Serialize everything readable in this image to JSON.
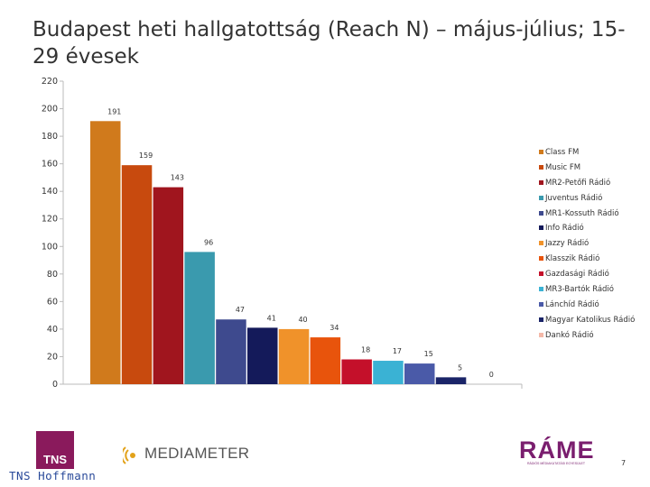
{
  "title": "Budapest heti hallgatottság (Reach N) – május-július; 15-29 évesek",
  "chart_data": {
    "type": "bar",
    "title": "Budapest heti hallgatottság (Reach N) – május-július; 15-29 évesek",
    "xlabel": "",
    "ylabel": "",
    "ylim": [
      0,
      220
    ],
    "yticks": [
      0,
      20,
      40,
      60,
      80,
      100,
      120,
      140,
      160,
      180,
      200,
      220
    ],
    "grid": false,
    "legend_position": "right",
    "series": [
      {
        "name": "Class FM",
        "value": 191,
        "color": "#d07a1c"
      },
      {
        "name": "Music FM",
        "value": 159,
        "color": "#c84a0e"
      },
      {
        "name": "MR2-Petőfi Rádió",
        "value": 143,
        "color": "#a0151e"
      },
      {
        "name": "Juventus Rádió",
        "value": 96,
        "color": "#3a9aae"
      },
      {
        "name": "MR1-Kossuth Rádió",
        "value": 47,
        "color": "#3e4a8e"
      },
      {
        "name": "Info Rádió",
        "value": 41,
        "color": "#141a5a"
      },
      {
        "name": "Jazzy Rádió",
        "value": 40,
        "color": "#f0922a"
      },
      {
        "name": "Klasszik Rádió",
        "value": 34,
        "color": "#e8540c"
      },
      {
        "name": "Gazdasági Rádió",
        "value": 18,
        "color": "#c4102a"
      },
      {
        "name": "MR3-Bartók Rádió",
        "value": 17,
        "color": "#3ab2d4"
      },
      {
        "name": "Lánchíd Rádió",
        "value": 15,
        "color": "#4a5aa8"
      },
      {
        "name": "Magyar Katolikus Rádió",
        "value": 5,
        "color": "#1a2468"
      },
      {
        "name": "Dankó Rádió",
        "value": 0,
        "color": "#f4b8a8"
      }
    ]
  },
  "footer": {
    "tns_logo": "TNS",
    "tns_name": "TNS Hoffmann",
    "mediameter": "MEDIAMETER",
    "rame": "RÁME",
    "rame_sub": "RÁDIÓS MÉDIAKUTATÁSI EGYESÜLET",
    "page_number": "7"
  }
}
